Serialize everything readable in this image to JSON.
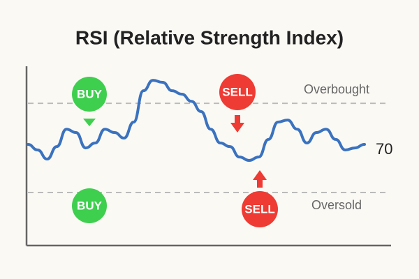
{
  "chart_data": {
    "type": "line",
    "title": "RSI (Relative Strength Index)",
    "values": [
      51.6,
      49.1,
      45,
      50.6,
      58.4,
      56.9,
      50,
      52.2,
      58.4,
      56.9,
      54.4,
      61.6,
      75.6,
      80.3,
      79.4,
      75.6,
      74.1,
      70.9,
      66.3,
      58.4,
      52.2,
      50.6,
      45.9,
      44.4,
      45.9,
      53.8,
      61.6,
      62.5,
      58.4,
      52.2,
      56.9,
      58.4,
      53.8,
      49.1,
      50,
      51.6
    ],
    "color": "#3a72bf",
    "ylim": [
      6.25,
      86.6
    ],
    "levels": [
      {
        "value": 70,
        "label": "Overbought"
      },
      {
        "value": 30,
        "label": "Oversold"
      }
    ],
    "annotations": [
      "70"
    ],
    "signals": [
      "BUY",
      "SELL",
      "BUY",
      "SELL"
    ]
  }
}
